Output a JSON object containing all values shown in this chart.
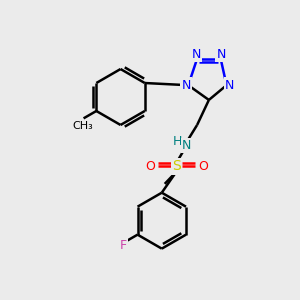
{
  "bg_color": "#ebebeb",
  "bond_color": "#000000",
  "N_color": "#0000ff",
  "O_color": "#ff0000",
  "S_color": "#cccc00",
  "F_color": "#cc44aa",
  "NH_color": "#008080",
  "line_width": 1.8,
  "figsize": [
    3.0,
    3.0
  ],
  "dpi": 100,
  "xlim": [
    0,
    10
  ],
  "ylim": [
    0,
    10
  ]
}
